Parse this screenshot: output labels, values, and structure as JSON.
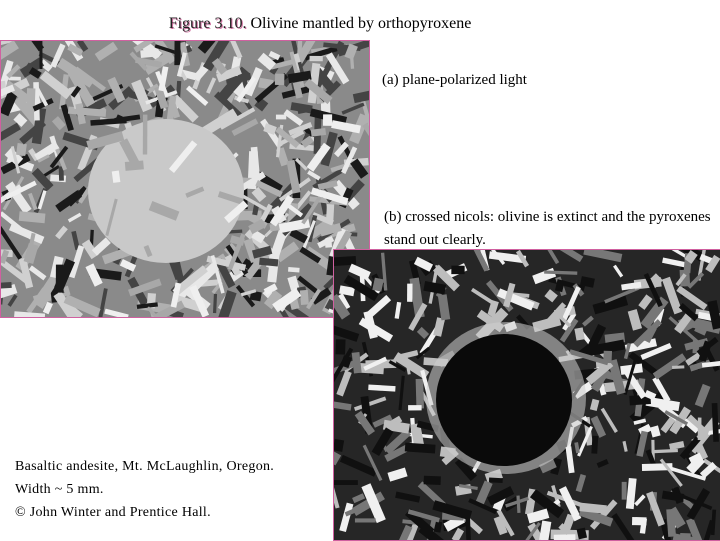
{
  "title": {
    "label": "Figure 3.10.",
    "text": "Olivine mantled by orthopyroxene"
  },
  "images": [
    {
      "caption_label": "(a)",
      "caption": "plane-polarized light"
    },
    {
      "caption_label": "(b)",
      "caption": "crossed nicols: olivine is extinct and the pyroxenes stand out clearly."
    }
  ],
  "notes": [
    "Basaltic andesite, Mt. McLaughlin, Oregon.",
    "Width ~ 5 mm.",
    "© John Winter and Prentice Hall."
  ]
}
